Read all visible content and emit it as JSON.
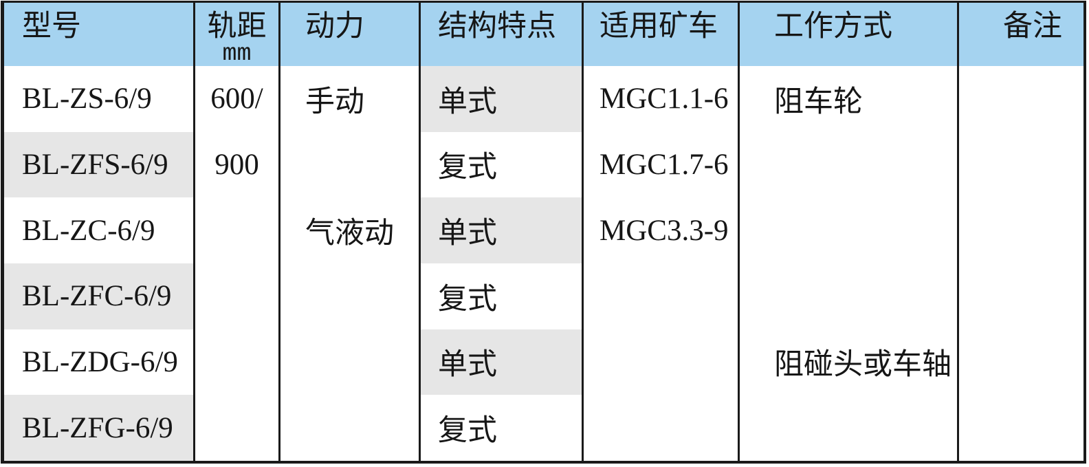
{
  "table": {
    "columns": [
      {
        "key": "model",
        "label": "型号",
        "sub": "",
        "shaded_rows": [
          1,
          3,
          5
        ]
      },
      {
        "key": "gauge",
        "label": "轨距",
        "sub": "mm",
        "shaded_rows": []
      },
      {
        "key": "power",
        "label": "动力",
        "sub": "",
        "shaded_rows": []
      },
      {
        "key": "structure",
        "label": "结构特点",
        "sub": "",
        "shaded_rows": [
          0,
          2,
          4
        ]
      },
      {
        "key": "mine_car",
        "label": "适用矿车",
        "sub": "",
        "shaded_rows": []
      },
      {
        "key": "work_mode",
        "label": "工作方式",
        "sub": "",
        "shaded_rows": []
      },
      {
        "key": "remark",
        "label": "备注",
        "sub": "",
        "shaded_rows": []
      }
    ],
    "rows": [
      {
        "model": "BL-ZS-6/9",
        "gauge": "600/",
        "power": "手动",
        "structure": "单式",
        "mine_car": "MGC1.1-6",
        "work_mode": "阻车轮",
        "remark": ""
      },
      {
        "model": "BL-ZFS-6/9",
        "gauge": "900",
        "power": "",
        "structure": "复式",
        "mine_car": "MGC1.7-6",
        "work_mode": "",
        "remark": ""
      },
      {
        "model": "BL-ZC-6/9",
        "gauge": "",
        "power": "气液动",
        "structure": "单式",
        "mine_car": "MGC3.3-9",
        "work_mode": "",
        "remark": ""
      },
      {
        "model": "BL-ZFC-6/9",
        "gauge": "",
        "power": "",
        "structure": "复式",
        "mine_car": "",
        "work_mode": "",
        "remark": ""
      },
      {
        "model": "BL-ZDG-6/9",
        "gauge": "",
        "power": "",
        "structure": "单式",
        "mine_car": "",
        "work_mode": "阻碰头或车轴",
        "remark": ""
      },
      {
        "model": "BL-ZFG-6/9",
        "gauge": "",
        "power": "",
        "structure": "复式",
        "mine_car": "",
        "work_mode": "",
        "remark": ""
      }
    ],
    "colors": {
      "header_bg": "#a5d3f0",
      "row_alt_bg": "#e6e6e6",
      "border": "#1a1a1a",
      "body_bg": "#ffffff"
    }
  }
}
